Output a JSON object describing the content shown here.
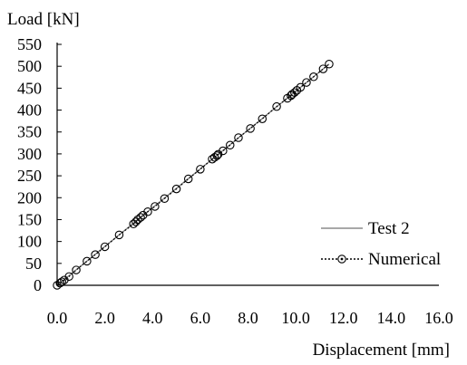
{
  "chart_data": {
    "type": "scatter",
    "title": "",
    "xlabel": "Displacement [mm]",
    "ylabel": "Load [kN]",
    "xlim": [
      0,
      16
    ],
    "ylim": [
      0,
      550
    ],
    "x_ticks": [
      "0.0",
      "2.0",
      "4.0",
      "6.0",
      "8.0",
      "10.0",
      "12.0",
      "14.0",
      "16.0"
    ],
    "y_ticks": [
      "0",
      "50",
      "100",
      "150",
      "200",
      "250",
      "300",
      "350",
      "400",
      "450",
      "500",
      "550"
    ],
    "grid": false,
    "legend_position": "bottom-right",
    "series": [
      {
        "name": "Test 2",
        "style": "solid-line",
        "color": "#8c8c8c",
        "x": [
          0.0,
          11.4
        ],
        "y": [
          0,
          505
        ]
      },
      {
        "name": "Numerical",
        "style": "dotted-line-open-circles",
        "color": "#000000",
        "x": [
          0.0,
          0.12,
          0.2,
          0.3,
          0.5,
          0.8,
          1.25,
          1.6,
          2.0,
          2.6,
          3.2,
          3.3,
          3.38,
          3.5,
          3.6,
          3.8,
          4.1,
          4.5,
          5.0,
          5.5,
          6.0,
          6.5,
          6.6,
          6.7,
          6.75,
          6.95,
          7.25,
          7.6,
          8.1,
          8.6,
          9.2,
          9.65,
          9.8,
          9.85,
          9.95,
          10.05,
          10.2,
          10.45,
          10.75,
          11.15,
          11.4
        ],
        "y": [
          0,
          5,
          8,
          12,
          20,
          35,
          55,
          70,
          88,
          115,
          140,
          145,
          150,
          155,
          160,
          168,
          180,
          198,
          220,
          243,
          265,
          288,
          292,
          296,
          299,
          307,
          320,
          337,
          358,
          380,
          408,
          427,
          433,
          436,
          440,
          445,
          452,
          463,
          476,
          494,
          505
        ]
      }
    ]
  }
}
